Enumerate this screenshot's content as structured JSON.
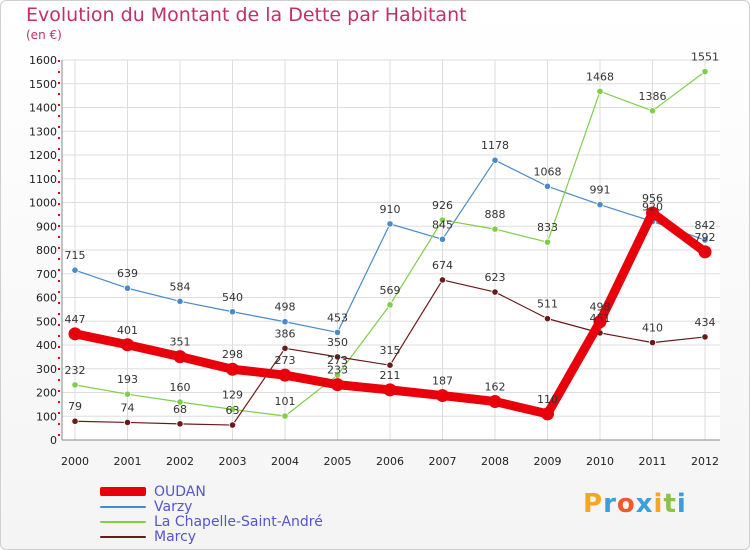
{
  "chart_data": {
    "type": "line",
    "title": "Evolution du Montant de la Dette par Habitant",
    "ylabel": "(en €)",
    "xlabel": "",
    "ylim": [
      0,
      1600
    ],
    "yticks": [
      0,
      100,
      200,
      300,
      400,
      500,
      600,
      700,
      800,
      900,
      1000,
      1100,
      1200,
      1300,
      1400,
      1500,
      1600
    ],
    "categories": [
      "2000",
      "2001",
      "2002",
      "2003",
      "2004",
      "2005",
      "2006",
      "2007",
      "2008",
      "2009",
      "2010",
      "2011",
      "2012"
    ],
    "grid": true,
    "legend_position": "bottom-left",
    "series": [
      {
        "name": "OUDAN",
        "color": "#e8000b",
        "values": [
          447,
          401,
          351,
          298,
          273,
          233,
          211,
          187,
          162,
          110,
          498,
          956,
          792
        ]
      },
      {
        "name": "Varzy",
        "color": "#4a8ac8",
        "values": [
          715,
          639,
          584,
          540,
          498,
          453,
          910,
          845,
          1178,
          1068,
          991,
          920,
          842
        ]
      },
      {
        "name": "La Chapelle-Saint-André",
        "color": "#7fce4a",
        "values": [
          232,
          193,
          160,
          129,
          101,
          273,
          569,
          926,
          888,
          833,
          1468,
          1386,
          1551
        ]
      },
      {
        "name": "Marcy",
        "color": "#6b1a1a",
        "values": [
          79,
          74,
          68,
          63,
          386,
          350,
          315,
          674,
          623,
          511,
          451,
          410,
          434
        ]
      }
    ]
  },
  "logo": {
    "text": "Proxiti",
    "colors": [
      "#f5a623",
      "#3aa0dc",
      "#f05a28",
      "#3aa0dc",
      "#f5a623",
      "#8bc34a",
      "#3aa0dc"
    ]
  }
}
